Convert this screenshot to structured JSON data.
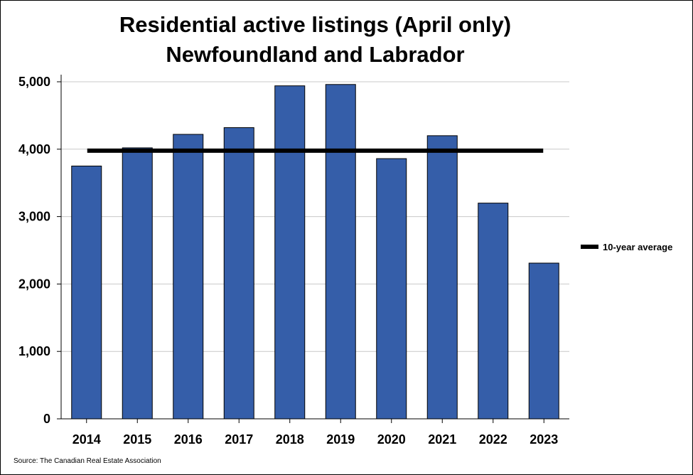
{
  "chart_data": {
    "type": "bar",
    "title": "Residential active listings (April only)",
    "subtitle": "Newfoundland and Labrador",
    "categories": [
      "2014",
      "2015",
      "2016",
      "2017",
      "2018",
      "2019",
      "2020",
      "2021",
      "2022",
      "2023"
    ],
    "series": [
      {
        "values": [
          3750,
          4020,
          4220,
          4320,
          4940,
          4960,
          3860,
          4200,
          3200,
          2310
        ],
        "color": "#355EA9"
      }
    ],
    "reference_line": {
      "name": "10-year average",
      "value": 3978,
      "color": "#000000"
    },
    "ylim": [
      0,
      5000
    ],
    "yticks": [
      0,
      1000,
      2000,
      3000,
      4000,
      5000
    ],
    "ytick_labels": [
      "0",
      "1,000",
      "2,000",
      "3,000",
      "4,000",
      "5,000"
    ],
    "xlabel": "",
    "ylabel": "",
    "grid": true,
    "legend_position": "right"
  },
  "source": "Source: The Canadian Real Estate Association"
}
